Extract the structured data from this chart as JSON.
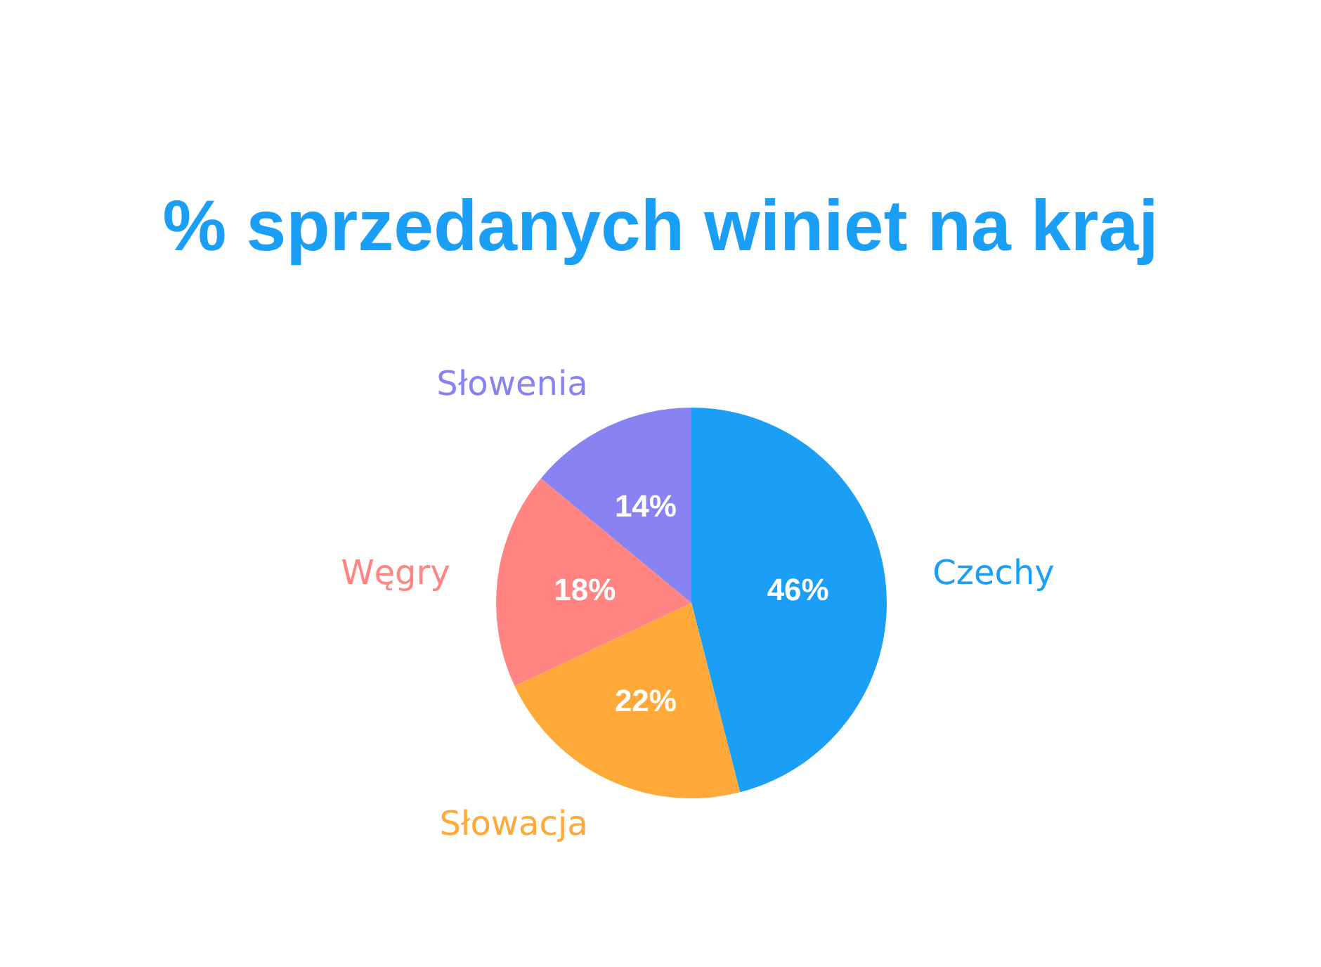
{
  "chart_data": {
    "type": "pie",
    "title": "% sprzedanych winiet na kraj",
    "categories": [
      "Czechy",
      "Słowacja",
      "Węgry",
      "Słowenia"
    ],
    "values": [
      46,
      22,
      18,
      14
    ],
    "colors": [
      "#1b9ef6",
      "#ffa93a",
      "#ff8482",
      "#8883f0"
    ],
    "value_labels": [
      "46%",
      "22%",
      "18%",
      "14%"
    ]
  }
}
